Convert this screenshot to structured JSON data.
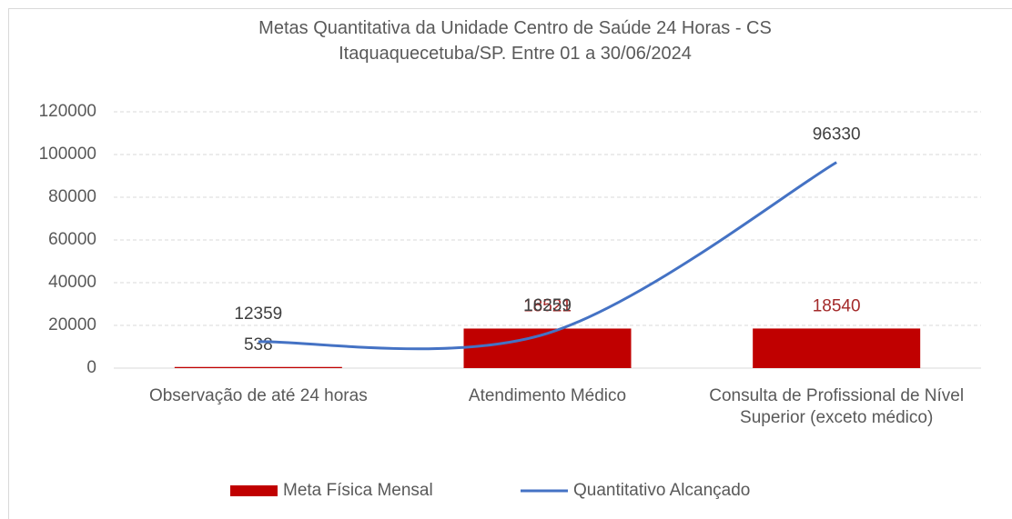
{
  "chart_data": {
    "type": "bar",
    "title": "Metas Quantitativa da Unidade Centro de Saúde 24 Horas - CS Itaquaquecetuba/SP. Entre 01 a 30/06/2024",
    "categories": [
      "Observação de até 24 horas",
      "Atendimento Médico",
      "Consulta de Profissional de Nível Superior (exceto médico)"
    ],
    "series": [
      {
        "name": "Meta Física Mensal",
        "type": "bar",
        "color": "#c00000",
        "values": [
          538,
          18521,
          18540
        ]
      },
      {
        "name": "Quantitativo Alcançado",
        "type": "line",
        "color": "#4472c4",
        "values": [
          12359,
          16259,
          96330
        ]
      }
    ],
    "ylim": [
      0,
      120000
    ],
    "yticks": [
      0,
      20000,
      40000,
      60000,
      80000,
      100000,
      120000
    ],
    "grid": true,
    "legend": "bottom"
  }
}
